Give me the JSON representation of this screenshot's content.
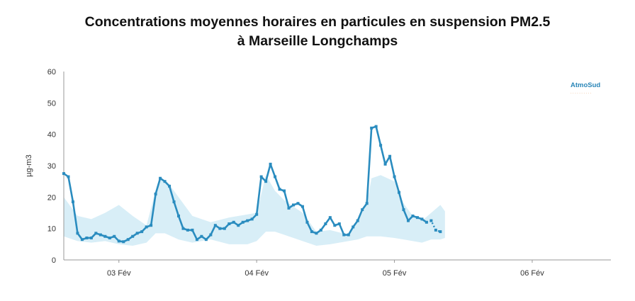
{
  "title_line1": "Concentrations moyennes horaires en particules en suspension PM2.5",
  "title_line2": "à Marseille Longchamps",
  "logo": {
    "text": "AtmoSud",
    "tagline": "· · · · · · · · · ·"
  },
  "colors": {
    "line": "#2a8cbf",
    "band": "#d8eef7",
    "axis": "#999999",
    "logo": "#2a86b8"
  },
  "chart_data": {
    "type": "line",
    "title": "Concentrations moyennes horaires en particules en suspension PM2.5 à Marseille Longchamps",
    "ylabel": "µg-m3",
    "xlabel": "",
    "ylim": [
      0,
      60
    ],
    "yticks": [
      0,
      10,
      20,
      30,
      40,
      50,
      60
    ],
    "xlim": [
      0,
      117
    ],
    "xtick_labels": [
      {
        "x": 12,
        "label": "03 Fév"
      },
      {
        "x": 42,
        "label": "04 Fév"
      },
      {
        "x": 72,
        "label": "05 Fév"
      },
      {
        "x": 102,
        "label": "06 Fév"
      }
    ],
    "grid": false,
    "legend": "none",
    "series": [
      {
        "kind": "line",
        "values": [
          [
            0,
            27.5
          ],
          [
            1,
            26.5
          ],
          [
            2,
            18.5
          ],
          [
            3,
            8.5
          ],
          [
            4,
            6.5
          ],
          [
            5,
            7
          ],
          [
            6,
            7
          ],
          [
            7,
            8.5
          ],
          [
            8,
            8
          ],
          [
            9,
            7.5
          ],
          [
            10,
            7
          ],
          [
            11,
            7.5
          ],
          [
            12,
            6
          ],
          [
            13,
            5.8
          ],
          [
            14,
            6.5
          ],
          [
            15,
            7.5
          ],
          [
            16,
            8.5
          ],
          [
            17,
            9
          ],
          [
            18,
            10.5
          ],
          [
            19,
            11
          ],
          [
            20,
            21
          ],
          [
            21,
            26
          ],
          [
            22,
            25
          ],
          [
            23,
            23.5
          ],
          [
            24,
            18.5
          ],
          [
            25,
            14
          ],
          [
            26,
            10
          ],
          [
            27,
            9.5
          ],
          [
            28,
            9.5
          ],
          [
            29,
            6.5
          ],
          [
            30,
            7.5
          ],
          [
            31,
            6.5
          ],
          [
            32,
            8
          ],
          [
            33,
            11
          ],
          [
            34,
            10
          ],
          [
            35,
            10
          ],
          [
            36,
            11.5
          ],
          [
            37,
            12
          ],
          [
            38,
            11
          ],
          [
            39,
            12
          ],
          [
            40,
            12.5
          ],
          [
            41,
            13
          ],
          [
            42,
            14.5
          ],
          [
            43,
            26.5
          ],
          [
            44,
            25
          ],
          [
            45,
            30.5
          ],
          [
            46,
            26.5
          ],
          [
            47,
            22.5
          ],
          [
            48,
            22
          ],
          [
            49,
            16.5
          ],
          [
            50,
            17.5
          ],
          [
            51,
            18
          ],
          [
            52,
            17
          ],
          [
            53,
            12
          ],
          [
            54,
            9
          ],
          [
            55,
            8.5
          ],
          [
            56,
            9.5
          ],
          [
            57,
            11.5
          ],
          [
            58,
            13.5
          ],
          [
            59,
            11
          ],
          [
            60,
            11.5
          ],
          [
            61,
            8
          ],
          [
            62,
            8
          ],
          [
            63,
            10.5
          ],
          [
            64,
            12.5
          ],
          [
            65,
            16
          ],
          [
            66,
            18
          ],
          [
            67,
            42
          ],
          [
            68,
            42.5
          ],
          [
            69,
            36.5
          ],
          [
            70,
            30.5
          ],
          [
            71,
            33
          ],
          [
            72,
            26.5
          ],
          [
            73,
            21.5
          ],
          [
            74,
            16
          ],
          [
            75,
            12.5
          ],
          [
            76,
            14
          ],
          [
            77,
            13.5
          ],
          [
            78,
            13
          ],
          [
            79,
            12
          ]
        ]
      },
      {
        "kind": "dotted-line",
        "values": [
          [
            79,
            12
          ],
          [
            80,
            12.5
          ],
          [
            81,
            9.5
          ],
          [
            82,
            9
          ]
        ]
      },
      {
        "kind": "band",
        "upper": [
          [
            0,
            20
          ],
          [
            3,
            14
          ],
          [
            6,
            13
          ],
          [
            9,
            15
          ],
          [
            12,
            17.5
          ],
          [
            15,
            14
          ],
          [
            18,
            11
          ],
          [
            20,
            22
          ],
          [
            21,
            26
          ],
          [
            23,
            24
          ],
          [
            25,
            20
          ],
          [
            28,
            14
          ],
          [
            32,
            12
          ],
          [
            36,
            13.5
          ],
          [
            40,
            14.5
          ],
          [
            42,
            15
          ],
          [
            44,
            27
          ],
          [
            46,
            22
          ],
          [
            48,
            19
          ],
          [
            52,
            15
          ],
          [
            55,
            9
          ],
          [
            58,
            9.5
          ],
          [
            62,
            8
          ],
          [
            64,
            12
          ],
          [
            66,
            18
          ],
          [
            67,
            26
          ],
          [
            69,
            27
          ],
          [
            72,
            25
          ],
          [
            74,
            18
          ],
          [
            76,
            14
          ],
          [
            78,
            12.5
          ],
          [
            80,
            15
          ],
          [
            82,
            17.5
          ],
          [
            83,
            15.5
          ]
        ],
        "lower": [
          [
            0,
            7.5
          ],
          [
            3,
            6
          ],
          [
            6,
            5.5
          ],
          [
            9,
            6
          ],
          [
            12,
            5
          ],
          [
            15,
            4.5
          ],
          [
            18,
            5.5
          ],
          [
            20,
            8.5
          ],
          [
            22,
            8.5
          ],
          [
            25,
            6.5
          ],
          [
            28,
            5.5
          ],
          [
            32,
            6.5
          ],
          [
            36,
            5
          ],
          [
            40,
            5
          ],
          [
            42,
            6
          ],
          [
            44,
            9
          ],
          [
            46,
            9
          ],
          [
            48,
            8
          ],
          [
            52,
            6
          ],
          [
            55,
            4.5
          ],
          [
            58,
            5
          ],
          [
            62,
            6
          ],
          [
            64,
            6.5
          ],
          [
            66,
            7.5
          ],
          [
            69,
            7.5
          ],
          [
            72,
            7
          ],
          [
            74,
            6.5
          ],
          [
            76,
            6
          ],
          [
            78,
            5.5
          ],
          [
            80,
            6.5
          ],
          [
            82,
            6.5
          ],
          [
            83,
            7
          ]
        ]
      }
    ]
  }
}
